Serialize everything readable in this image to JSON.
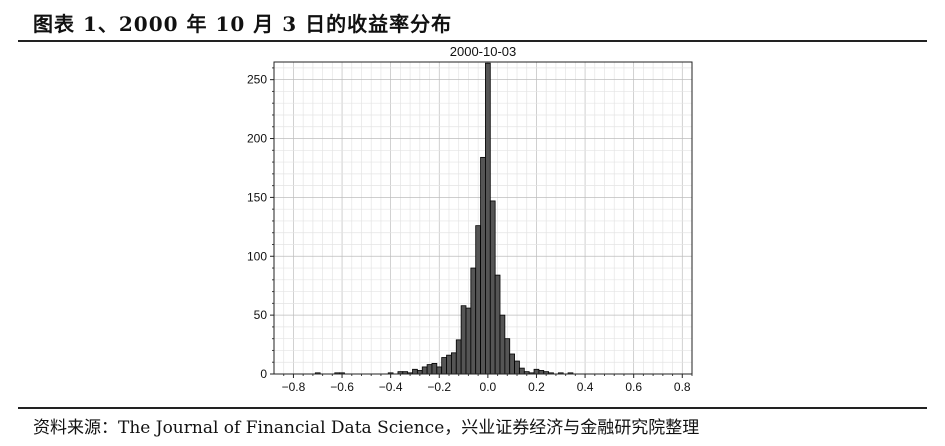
{
  "figure": {
    "title": "图表 1、2000 年 10 月 3 日的收益率分布",
    "source": "资料来源：The Journal of Financial Data Science，兴业证券经济与金融研究院整理"
  },
  "chart_data": {
    "type": "bar",
    "title": "2000-10-03",
    "xlabel": "",
    "ylabel": "",
    "xlim": [
      -0.88,
      0.84
    ],
    "ylim": [
      0,
      265
    ],
    "xticks": [
      "−0.8",
      "−0.6",
      "−0.4",
      "−0.2",
      "0.0",
      "0.2",
      "0.4",
      "0.6",
      "0.8"
    ],
    "yticks": [
      "0",
      "50",
      "100",
      "150",
      "200",
      "250"
    ],
    "grid": true,
    "bin_width": 0.02,
    "bar_color": "#555555",
    "bins": [
      {
        "x": -0.7,
        "count": 1
      },
      {
        "x": -0.62,
        "count": 1
      },
      {
        "x": -0.6,
        "count": 1
      },
      {
        "x": -0.4,
        "count": 1
      },
      {
        "x": -0.36,
        "count": 2
      },
      {
        "x": -0.34,
        "count": 2
      },
      {
        "x": -0.32,
        "count": 1
      },
      {
        "x": -0.3,
        "count": 4
      },
      {
        "x": -0.28,
        "count": 3
      },
      {
        "x": -0.26,
        "count": 6
      },
      {
        "x": -0.24,
        "count": 8
      },
      {
        "x": -0.22,
        "count": 9
      },
      {
        "x": -0.2,
        "count": 6
      },
      {
        "x": -0.18,
        "count": 14
      },
      {
        "x": -0.16,
        "count": 16
      },
      {
        "x": -0.14,
        "count": 18
      },
      {
        "x": -0.12,
        "count": 29
      },
      {
        "x": -0.1,
        "count": 58
      },
      {
        "x": -0.08,
        "count": 56
      },
      {
        "x": -0.06,
        "count": 90
      },
      {
        "x": -0.04,
        "count": 126
      },
      {
        "x": -0.02,
        "count": 184
      },
      {
        "x": 0.0,
        "count": 264
      },
      {
        "x": 0.02,
        "count": 147
      },
      {
        "x": 0.04,
        "count": 84
      },
      {
        "x": 0.06,
        "count": 50
      },
      {
        "x": 0.08,
        "count": 30
      },
      {
        "x": 0.1,
        "count": 17
      },
      {
        "x": 0.12,
        "count": 11
      },
      {
        "x": 0.14,
        "count": 5
      },
      {
        "x": 0.16,
        "count": 2
      },
      {
        "x": 0.18,
        "count": 1
      },
      {
        "x": 0.2,
        "count": 4
      },
      {
        "x": 0.22,
        "count": 3
      },
      {
        "x": 0.24,
        "count": 2
      },
      {
        "x": 0.26,
        "count": 1
      },
      {
        "x": 0.3,
        "count": 1
      },
      {
        "x": 0.34,
        "count": 1
      }
    ]
  }
}
